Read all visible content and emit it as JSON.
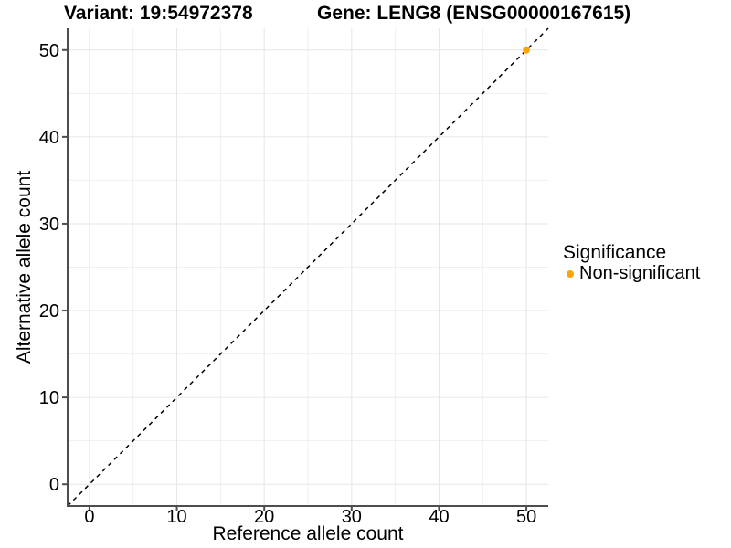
{
  "titles": {
    "variant": "Variant: 19:54972378",
    "gene": "Gene: LENG8 (ENSG00000167615)"
  },
  "chart_data": {
    "type": "scatter",
    "xlabel": "Reference allele count",
    "ylabel": "Alternative allele count",
    "xlim": [
      -2.5,
      52.5
    ],
    "ylim": [
      -2.5,
      52.5
    ],
    "xticks": [
      0,
      10,
      20,
      30,
      40,
      50
    ],
    "yticks": [
      0,
      10,
      20,
      30,
      40,
      50
    ],
    "minor_xticks": [
      5,
      15,
      25,
      35,
      45
    ],
    "minor_yticks": [
      5,
      15,
      25,
      35,
      45
    ],
    "grid": true,
    "reference_line": {
      "type": "identity",
      "slope": 1,
      "intercept": 0,
      "style": "dashed",
      "color": "#000000"
    },
    "series": [
      {
        "name": "Non-significant",
        "color": "#FFA500",
        "points": [
          {
            "x": 50,
            "y": 50
          }
        ]
      }
    ],
    "legend": {
      "title": "Significance",
      "position": "right",
      "entries": [
        {
          "label": "Non-significant",
          "color": "#FFA500"
        }
      ]
    },
    "colors": {
      "background": "#ffffff",
      "grid_major": "#e6e6e6",
      "grid_minor": "#efefef",
      "axis_line": "#4d4d4d",
      "text": "#000000"
    }
  }
}
